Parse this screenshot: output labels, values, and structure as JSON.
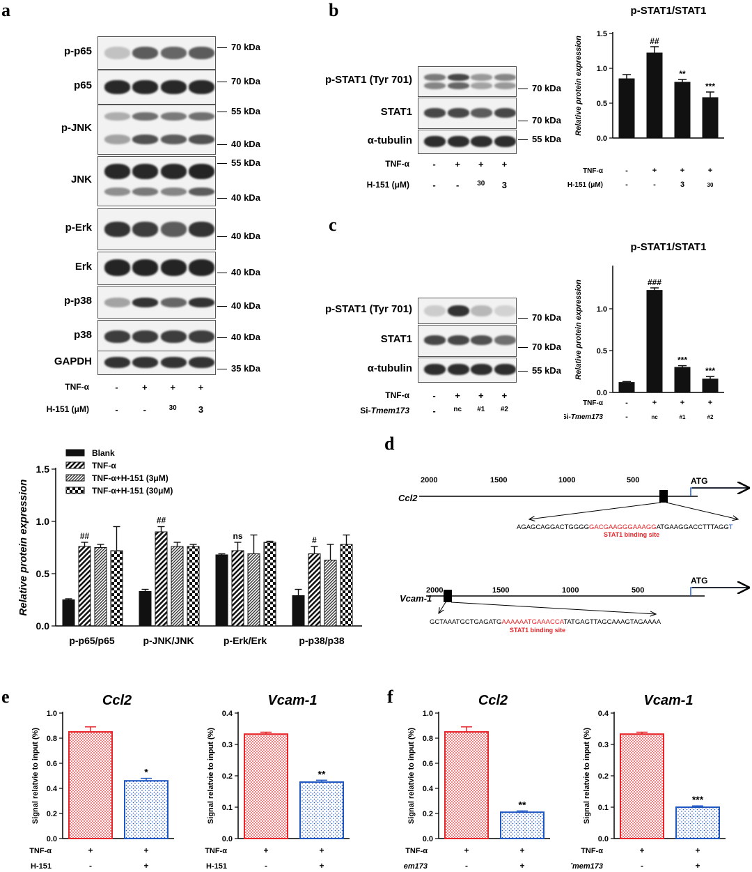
{
  "panel_labels": {
    "a": "a",
    "b": "b",
    "c": "c",
    "d": "d",
    "e": "e",
    "f": "f"
  },
  "panel_a": {
    "rows": [
      {
        "label": "p-p65",
        "markers": [
          "70 kDa"
        ]
      },
      {
        "label": "p65",
        "markers": [
          "70 kDa"
        ]
      },
      {
        "label": "p-JNK",
        "markers": [
          "55 kDa",
          "40 kDa"
        ]
      },
      {
        "label": "JNK",
        "markers": [
          "55 kDa",
          "40 kDa"
        ]
      },
      {
        "label": "p-Erk",
        "markers": [
          "40 kDa"
        ]
      },
      {
        "label": "Erk",
        "markers": [
          "40 kDa"
        ]
      },
      {
        "label": "p-p38",
        "markers": [
          "40 kDa"
        ]
      },
      {
        "label": "p38",
        "markers": [
          "40 kDa"
        ]
      },
      {
        "label": "GAPDH",
        "markers": [
          "35 kDa"
        ]
      }
    ],
    "treatments": [
      {
        "label": "TNF-α",
        "values": [
          "-",
          "+",
          "+",
          "+"
        ]
      },
      {
        "label": "H-151 (μM)",
        "values": [
          "-",
          "-",
          "30",
          "3"
        ]
      }
    ]
  },
  "panel_b": {
    "rows": [
      {
        "label": "p-STAT1 (Tyr 701)",
        "markers": [
          "70 kDa"
        ]
      },
      {
        "label": "STAT1",
        "markers": [
          "70 kDa"
        ]
      },
      {
        "label": "α-tubulin",
        "markers": [
          "55 kDa"
        ]
      }
    ],
    "treatments": [
      {
        "label": "TNF-α",
        "values": [
          "-",
          "+",
          "+",
          "+"
        ]
      },
      {
        "label": "H-151 (μM)",
        "values": [
          "-",
          "-",
          "30",
          "3"
        ]
      }
    ]
  },
  "panel_c": {
    "rows": [
      {
        "label": "p-STAT1 (Tyr 701)",
        "markers": [
          "70 kDa"
        ]
      },
      {
        "label": "STAT1",
        "markers": [
          "70 kDa"
        ]
      },
      {
        "label": "α-tubulin",
        "markers": [
          "55 kDa"
        ]
      }
    ],
    "treatments": [
      {
        "label": "TNF-α",
        "values": [
          "-",
          "+",
          "+",
          "+"
        ]
      },
      {
        "label": "Si-Tmem173",
        "values": [
          "-",
          "nc",
          "#1",
          "#2"
        ]
      }
    ]
  },
  "panel_d": {
    "ccl2": {
      "name": "Ccl2",
      "ticks": [
        "2000",
        "1500",
        "1000",
        "500"
      ],
      "atg": "ATG",
      "seq_pre": "AGAGCAGGACTGGGG",
      "seq_site": "GACGAAGGGAAAGG",
      "seq_post": "ATGAAGGACCTTTAGG",
      "seq_end": "T",
      "site_label": "STAT1 binding site"
    },
    "vcam1": {
      "name": "Vcam-1",
      "ticks": [
        "2000",
        "1500",
        "1000",
        "500"
      ],
      "atg": "ATG",
      "seq_pre": "GCTAAATGCTGAGATG",
      "seq_site": "AAAAAATGAAACCA",
      "seq_post": "TATGAGTTAGCAAAGTAGAAAA",
      "site_label": "STAT1 binding site"
    }
  },
  "colors": {
    "red": "#e8262a",
    "blue": "#1f57c2",
    "black": "#111111"
  },
  "chart_data": [
    {
      "id": "b-stat1",
      "type": "bar",
      "title": "p-STAT1/STAT1",
      "ylabel": "Relative protein expression",
      "ylim": [
        0,
        1.5
      ],
      "yticks": [
        0.0,
        0.5,
        1.0,
        1.5
      ],
      "values": [
        0.85,
        1.22,
        0.8,
        0.58
      ],
      "errors": [
        0.06,
        0.09,
        0.04,
        0.08
      ],
      "annotations": [
        "",
        "##",
        "**",
        "***"
      ],
      "xrows": [
        {
          "label": "TNF-α",
          "values": [
            "-",
            "+",
            "+",
            "+"
          ]
        },
        {
          "label": "H-151 (μM)",
          "values": [
            "-",
            "-",
            "3",
            "30"
          ]
        }
      ]
    },
    {
      "id": "c-stat1",
      "type": "bar",
      "title": "p-STAT1/STAT1",
      "ylabel": "Relative protein expression",
      "ylim": [
        0,
        1.5
      ],
      "yticks": [
        0.0,
        0.5,
        1.0
      ],
      "values": [
        0.12,
        1.22,
        0.3,
        0.16
      ],
      "errors": [
        0.01,
        0.03,
        0.02,
        0.03
      ],
      "annotations": [
        "",
        "###",
        "***",
        "***"
      ],
      "xrows": [
        {
          "label": "TNF-α",
          "values": [
            "-",
            "+",
            "+",
            "+"
          ]
        },
        {
          "label": "Si-Tmem173",
          "values": [
            "-",
            "nc",
            "#1",
            "#2"
          ]
        }
      ]
    },
    {
      "id": "a-quant",
      "type": "bar",
      "ylabel": "Relative protein expression",
      "ylim": [
        0,
        1.5
      ],
      "yticks": [
        0.0,
        0.5,
        1.0,
        1.5
      ],
      "categories": [
        "p-p65/p65",
        "p-JNK/JNK",
        "p-Erk/Erk",
        "p-p38/p38"
      ],
      "series": [
        {
          "name": "Blank",
          "values": [
            0.25,
            0.33,
            0.68,
            0.29
          ],
          "errors": [
            0.01,
            0.02,
            0.01,
            0.06
          ]
        },
        {
          "name": "TNF-α",
          "values": [
            0.76,
            0.9,
            0.72,
            0.69
          ],
          "errors": [
            0.04,
            0.05,
            0.08,
            0.07
          ]
        },
        {
          "name": "TNF-α+H-151 (3μM)",
          "values": [
            0.75,
            0.76,
            0.69,
            0.63
          ],
          "errors": [
            0.03,
            0.04,
            0.18,
            0.15
          ]
        },
        {
          "name": "TNF-α+H-151 (30μM)",
          "values": [
            0.72,
            0.76,
            0.8,
            0.78
          ],
          "errors": [
            0.23,
            0.02,
            0.01,
            0.09
          ]
        }
      ],
      "annotations": [
        "##",
        "##",
        "ns",
        "#"
      ]
    },
    {
      "id": "e-ccl2",
      "type": "bar",
      "title": "Ccl2",
      "ylabel": "Signal relatvie to input (%)",
      "ylim": [
        0,
        1.0
      ],
      "yticks": [
        0.0,
        0.2,
        0.4,
        0.6,
        0.8,
        1.0
      ],
      "values": [
        0.85,
        0.46
      ],
      "errors": [
        0.04,
        0.02
      ],
      "annotations": [
        "",
        "*"
      ],
      "xrows": [
        {
          "label": "TNF-α",
          "values": [
            "+",
            "+"
          ]
        },
        {
          "label": "H-151",
          "values": [
            "-",
            "+"
          ]
        }
      ]
    },
    {
      "id": "e-vcam1",
      "type": "bar",
      "title": "Vcam-1",
      "ylabel": "Signal relatvie to input (%)",
      "ylim": [
        0,
        0.4
      ],
      "yticks": [
        0.0,
        0.1,
        0.2,
        0.3,
        0.4
      ],
      "values": [
        0.333,
        0.18
      ],
      "errors": [
        0.006,
        0.006
      ],
      "annotations": [
        "",
        "**"
      ],
      "xrows": [
        {
          "label": "TNF-α",
          "values": [
            "+",
            "+"
          ]
        },
        {
          "label": "H-151",
          "values": [
            "-",
            "+"
          ]
        }
      ]
    },
    {
      "id": "f-ccl2",
      "type": "bar",
      "title": "Ccl2",
      "ylabel": "Signal relatvie to input (%)",
      "ylim": [
        0,
        1.0
      ],
      "yticks": [
        0.0,
        0.2,
        0.4,
        0.6,
        0.8,
        1.0
      ],
      "values": [
        0.85,
        0.21
      ],
      "errors": [
        0.04,
        0.01
      ],
      "annotations": [
        "",
        "**"
      ],
      "xrows": [
        {
          "label": "TNF-α",
          "values": [
            "+",
            "+"
          ]
        },
        {
          "label": "Si-Tmem173",
          "values": [
            "-",
            "+"
          ]
        }
      ]
    },
    {
      "id": "f-vcam1",
      "type": "bar",
      "title": "Vcam-1",
      "ylabel": "Signal relatvie to input (%)",
      "ylim": [
        0,
        0.4
      ],
      "yticks": [
        0.0,
        0.1,
        0.2,
        0.3,
        0.4
      ],
      "values": [
        0.333,
        0.1
      ],
      "errors": [
        0.006,
        0.004
      ],
      "annotations": [
        "",
        "***"
      ],
      "xrows": [
        {
          "label": "TNF-α",
          "values": [
            "+",
            "+"
          ]
        },
        {
          "label": "Si-Tmem173",
          "values": [
            "-",
            "+"
          ]
        }
      ]
    }
  ]
}
